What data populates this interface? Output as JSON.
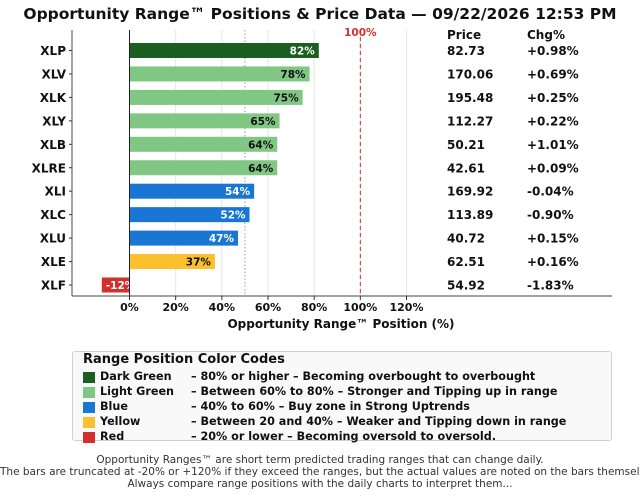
{
  "title": "Opportunity Range™ Positions & Price Data — 09/22/2026 12:53 PM",
  "chart_data": {
    "type": "bar",
    "orientation": "horizontal",
    "categories": [
      "XLP",
      "XLV",
      "XLK",
      "XLY",
      "XLB",
      "XLRE",
      "XLI",
      "XLC",
      "XLU",
      "XLE",
      "XLF"
    ],
    "values": [
      82,
      78,
      75,
      65,
      64,
      64,
      54,
      52,
      47,
      37,
      -12
    ],
    "bar_labels": [
      "82%",
      "78%",
      "75%",
      "65%",
      "64%",
      "64%",
      "54%",
      "52%",
      "47%",
      "37%",
      "-12%"
    ],
    "bar_colors": [
      "#1a5e20",
      "#81c784",
      "#81c784",
      "#81c784",
      "#81c784",
      "#81c784",
      "#1976d2",
      "#1976d2",
      "#1976d2",
      "#fbc02d",
      "#d32f2f"
    ],
    "xlabel": "Opportunity Range™ Position (%)",
    "xlim": [
      -20,
      120
    ],
    "xticks": [
      0,
      20,
      40,
      60,
      80,
      100,
      120
    ],
    "xtick_labels": [
      "0%",
      "20%",
      "40%",
      "60%",
      "80%",
      "100%",
      "120%"
    ],
    "reference_line": {
      "value": 100,
      "label": "100%",
      "color": "#d32f2f"
    },
    "midline": {
      "value": 50
    },
    "grid": "x",
    "table": {
      "headers": [
        "Price",
        "Chg%"
      ],
      "prices": [
        "82.73",
        "170.06",
        "195.48",
        "112.27",
        "50.21",
        "42.61",
        "169.92",
        "113.89",
        "40.72",
        "62.51",
        "54.92"
      ],
      "changes": [
        "+0.98%",
        "+0.69%",
        "+0.25%",
        "+0.22%",
        "+1.01%",
        "+0.09%",
        "-0.04%",
        "-0.90%",
        "+0.15%",
        "+0.16%",
        "-1.83%"
      ]
    }
  },
  "legend": {
    "title": "Range Position Color Codes",
    "items": [
      {
        "color": "#1a5e20",
        "name": "Dark Green",
        "desc": "–  80% or higher  –  Becoming overbought to overbought"
      },
      {
        "color": "#81c784",
        "name": "Light Green",
        "desc": "–  Between 60% to 80%  –  Stronger and Tipping up in range"
      },
      {
        "color": "#1976d2",
        "name": "Blue",
        "desc": "–  40% to 60%  –  Buy zone in Strong Uptrends"
      },
      {
        "color": "#fbc02d",
        "name": "Yellow",
        "desc": "–  Between 20 and 40%  –  Weaker and Tipping down in range"
      },
      {
        "color": "#d32f2f",
        "name": "Red",
        "desc": "–  20% or lower  –  Becoming oversold to oversold."
      }
    ]
  },
  "footnotes": [
    "Opportunity Ranges™ are short term predicted trading ranges that can change daily.",
    "The bars are truncated at -20% or +120% if they exceed the ranges, but the actual values are noted on the bars themselves.",
    "Always compare range positions with the daily charts to interpret them..."
  ]
}
